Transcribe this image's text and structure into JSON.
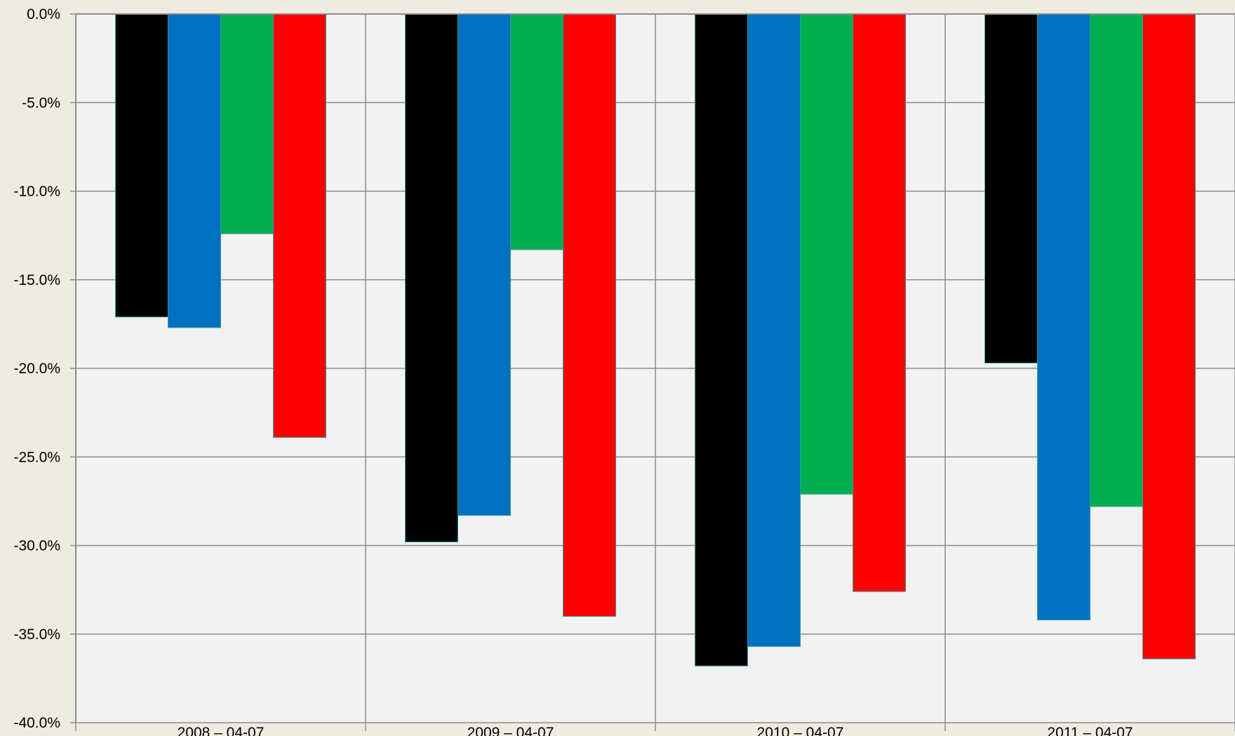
{
  "chart_data": {
    "type": "bar",
    "title": "",
    "xlabel": "",
    "ylabel": "",
    "categories": [
      "2008 – 04-07",
      "2009 – 04-07",
      "2010 – 04-07",
      "2011 – 04-07"
    ],
    "series": [
      {
        "color": "#000000",
        "values": [
          -17.1,
          -29.8,
          -36.8,
          -19.7
        ]
      },
      {
        "color": "#0070c0",
        "values": [
          -17.7,
          -28.3,
          -35.7,
          -34.2
        ]
      },
      {
        "color": "#00b050",
        "values": [
          -12.4,
          -13.3,
          -27.1,
          -27.8
        ]
      },
      {
        "color": "#ff0000",
        "values": [
          -23.9,
          -34.0,
          -32.6,
          -36.4
        ]
      }
    ],
    "yticks": [
      "0.0%",
      "-5.0%",
      "-10.0%",
      "-15.0%",
      "-20.0%",
      "-25.0%",
      "-30.0%",
      "-35.0%",
      "-40.0%"
    ],
    "ylim": [
      -40,
      0
    ],
    "grid": true,
    "legend": "none",
    "colors": {
      "page_background": "#eeebe0",
      "plot_background": "#f2f2f2",
      "gridline": "#8c8c8c",
      "bar_outline": "#2e9e9e"
    }
  }
}
